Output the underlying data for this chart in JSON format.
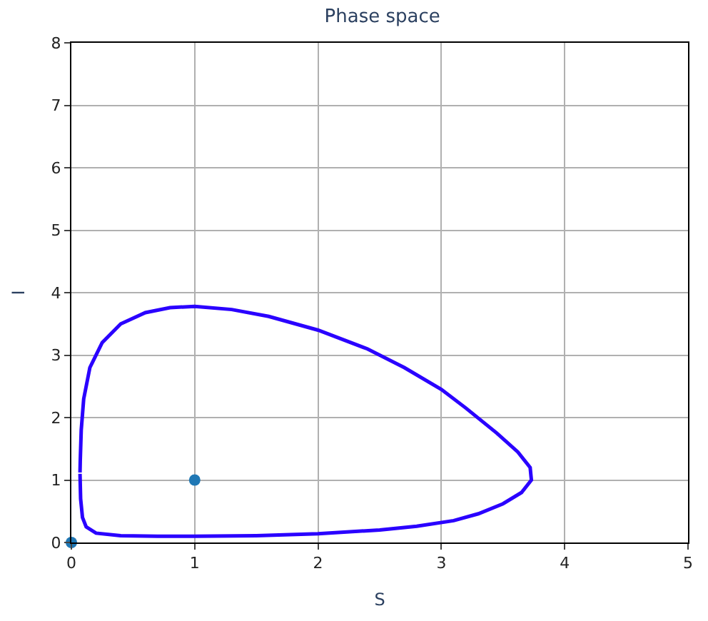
{
  "chart_data": {
    "type": "line",
    "title": "Phase space",
    "xlabel": "S",
    "ylabel": "I",
    "xlim": [
      0,
      5
    ],
    "ylim": [
      0,
      8
    ],
    "xticks": [
      0,
      1,
      2,
      3,
      4,
      5
    ],
    "yticks": [
      0,
      1,
      2,
      3,
      4,
      5,
      6,
      7,
      8
    ],
    "grid": true,
    "line_style": "solid",
    "series": [
      {
        "color": "#2a00ff",
        "x": [
          0.07,
          0.075,
          0.09,
          0.12,
          0.2,
          0.4,
          0.7,
          1,
          1.5,
          2,
          2.5,
          2.8,
          3.1,
          3.3,
          3.5,
          3.65,
          3.73,
          3.72,
          3.62,
          3.45,
          3.2,
          3.0,
          2.7,
          2.4,
          2,
          1.6,
          1.3,
          1,
          0.8,
          0.6,
          0.4,
          0.25,
          0.15,
          0.1,
          0.08,
          0.072,
          0.07
        ],
        "values": [
          1.1,
          0.7,
          0.4,
          0.25,
          0.15,
          0.11,
          0.1,
          0.1,
          0.11,
          0.14,
          0.2,
          0.26,
          0.35,
          0.46,
          0.62,
          0.8,
          1.0,
          1.2,
          1.45,
          1.75,
          2.15,
          2.45,
          2.8,
          3.1,
          3.4,
          3.62,
          3.73,
          3.78,
          3.76,
          3.68,
          3.5,
          3.2,
          2.8,
          2.3,
          1.8,
          1.3,
          1.12
        ]
      },
      {
        "type": "scatter",
        "color": "#1f77b4",
        "marker": "circle",
        "x": [
          1,
          0
        ],
        "values": [
          1,
          0
        ]
      }
    ]
  }
}
